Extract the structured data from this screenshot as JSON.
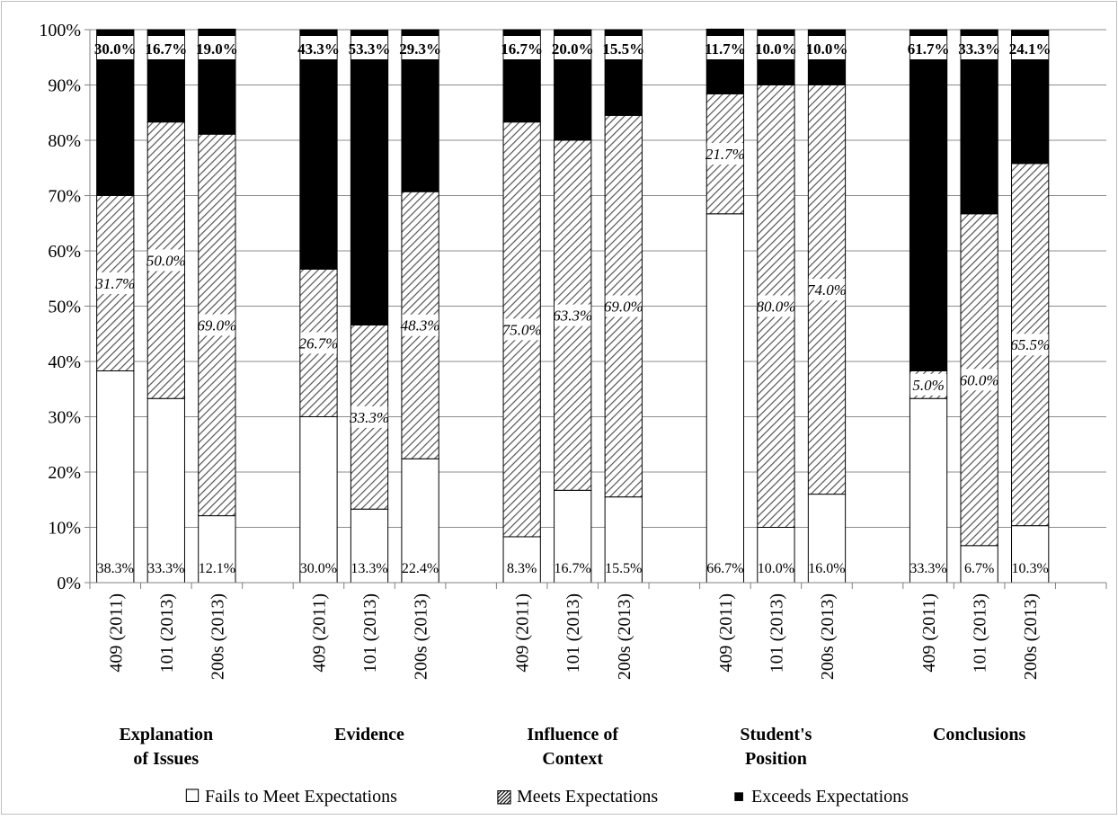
{
  "chart_data": {
    "type": "bar",
    "stacked": true,
    "y_axis": {
      "ylim": [
        0,
        100
      ],
      "tick_labels": [
        "0%",
        "10%",
        "20%",
        "30%",
        "40%",
        "50%",
        "60%",
        "70%",
        "80%",
        "90%",
        "100%"
      ]
    },
    "groups": [
      {
        "label": [
          "Explanation",
          "of Issues"
        ],
        "bars": [
          {
            "category": "409 (2011)",
            "values": [
              38.3,
              31.7,
              30.0
            ],
            "labels": [
              "38.3%",
              "31.7%",
              "30.0%"
            ]
          },
          {
            "category": "101 (2013)",
            "values": [
              33.3,
              50.0,
              16.7
            ],
            "labels": [
              "33.3%",
              "50.0%",
              "16.7%"
            ]
          },
          {
            "category": "200s (2013)",
            "values": [
              12.1,
              69.0,
              19.0
            ],
            "labels": [
              "12.1%",
              "69.0%",
              "19.0%"
            ]
          }
        ]
      },
      {
        "label": [
          "Evidence"
        ],
        "bars": [
          {
            "category": "409 (2011)",
            "values": [
              30.0,
              26.7,
              43.3
            ],
            "labels": [
              "30.0%",
              "26.7%",
              "43.3%"
            ]
          },
          {
            "category": "101 (2013)",
            "values": [
              13.3,
              33.3,
              53.3
            ],
            "labels": [
              "13.3%",
              "33.3%",
              "53.3%"
            ]
          },
          {
            "category": "200s (2013)",
            "values": [
              22.4,
              48.3,
              29.3
            ],
            "labels": [
              "22.4%",
              "48.3%",
              "29.3%"
            ]
          }
        ]
      },
      {
        "label": [
          "Influence of",
          "Context"
        ],
        "bars": [
          {
            "category": "409 (2011)",
            "values": [
              8.3,
              75.0,
              16.7
            ],
            "labels": [
              "8.3%",
              "75.0%",
              "16.7%"
            ]
          },
          {
            "category": "101 (2013)",
            "values": [
              16.7,
              63.3,
              20.0
            ],
            "labels": [
              "16.7%",
              "63.3%",
              "20.0%"
            ]
          },
          {
            "category": "200s (2013)",
            "values": [
              15.5,
              69.0,
              15.5
            ],
            "labels": [
              "15.5%",
              "69.0%",
              "15.5%"
            ]
          }
        ]
      },
      {
        "label": [
          "Student's",
          "Position"
        ],
        "bars": [
          {
            "category": "409 (2011)",
            "values": [
              66.7,
              21.7,
              11.7
            ],
            "labels": [
              "66.7%",
              "21.7%",
              "11.7%"
            ]
          },
          {
            "category": "101 (2013)",
            "values": [
              10.0,
              80.0,
              10.0
            ],
            "labels": [
              "10.0%",
              "80.0%",
              "10.0%"
            ]
          },
          {
            "category": "200s (2013)",
            "values": [
              16.0,
              74.0,
              10.0
            ],
            "labels": [
              "16.0%",
              "74.0%",
              "10.0%"
            ]
          }
        ]
      },
      {
        "label": [
          "Conclusions"
        ],
        "bars": [
          {
            "category": "409 (2011)",
            "values": [
              33.3,
              5.0,
              61.7
            ],
            "labels": [
              "33.3%",
              "5.0%",
              "61.7%"
            ]
          },
          {
            "category": "101 (2013)",
            "values": [
              6.7,
              60.0,
              33.3
            ],
            "labels": [
              "6.7%",
              "60.0%",
              "33.3%"
            ]
          },
          {
            "category": "200s (2013)",
            "values": [
              10.3,
              65.5,
              24.1
            ],
            "labels": [
              "10.3%",
              "65.5%",
              "24.1%"
            ]
          }
        ]
      }
    ],
    "series": [
      {
        "name": "Fails to Meet Expectations",
        "fill": "white",
        "color": "#ffffff"
      },
      {
        "name": "Meets Expectations",
        "fill": "diagonal-hatch",
        "color": "#888888"
      },
      {
        "name": "Exceeds Expectations",
        "fill": "solid",
        "color": "#000000"
      }
    ],
    "legend_position": "bottom",
    "grid": true
  },
  "legend": {
    "symbols": [
      "☐",
      "▨",
      "■"
    ],
    "items": [
      "Fails to Meet Expectations",
      "Meets Expectations",
      "Exceeds Expectations"
    ]
  }
}
